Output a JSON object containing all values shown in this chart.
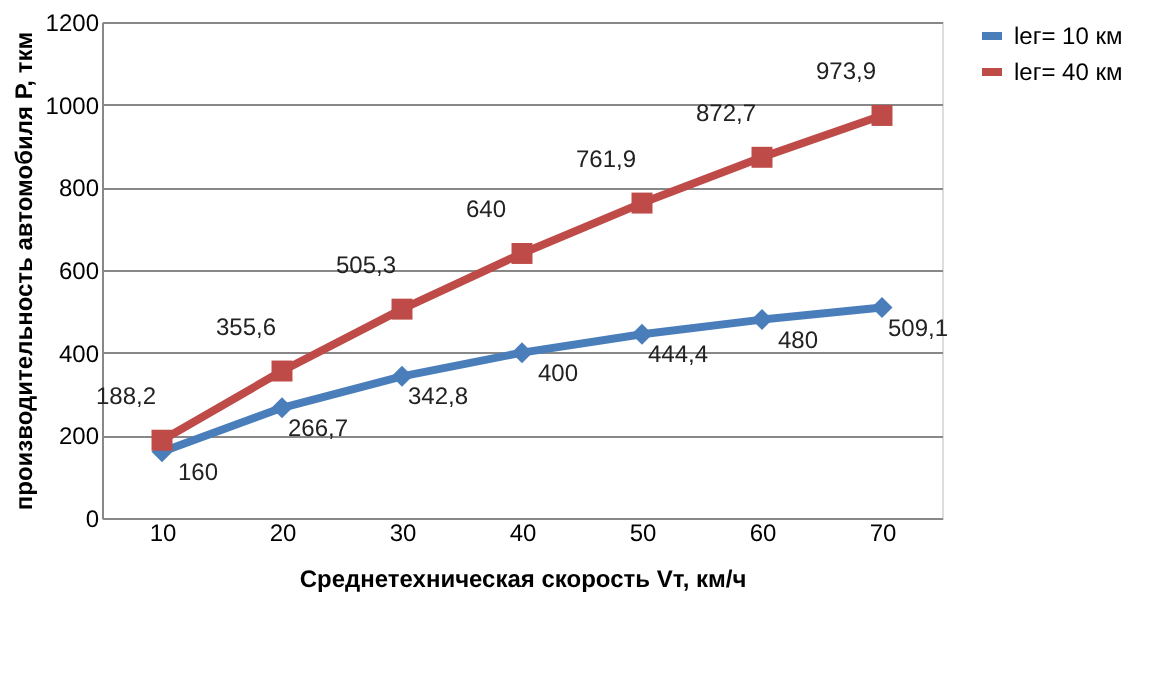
{
  "chart_data": {
    "type": "line",
    "xlabel": "Среднетехническая скорость Vт, км/ч",
    "ylabel": "производительность автомобиля Р, ткм",
    "categories": [
      "10",
      "20",
      "30",
      "40",
      "50",
      "60",
      "70"
    ],
    "series": [
      {
        "name": "lег= 10 км",
        "color": "#4a7ebb",
        "marker": "diamond",
        "values": [
          160,
          266.7,
          342.8,
          400,
          444.4,
          480,
          509.1
        ],
        "value_labels": [
          "160",
          "266,7",
          "342,8",
          "400",
          "444,4",
          "480",
          "509,1"
        ]
      },
      {
        "name": "lег= 40 км",
        "color": "#be4b48",
        "marker": "square",
        "values": [
          188.2,
          355.6,
          505.3,
          640,
          761.9,
          872.7,
          973.9
        ],
        "value_labels": [
          "188,2",
          "355,6",
          "505,3",
          "640",
          "761,9",
          "872,7",
          "973,9"
        ]
      }
    ],
    "ylim": [
      0,
      1200
    ],
    "yticks": [
      0,
      200,
      400,
      600,
      800,
      1000,
      1200
    ],
    "grid": "y",
    "legend": "right"
  }
}
